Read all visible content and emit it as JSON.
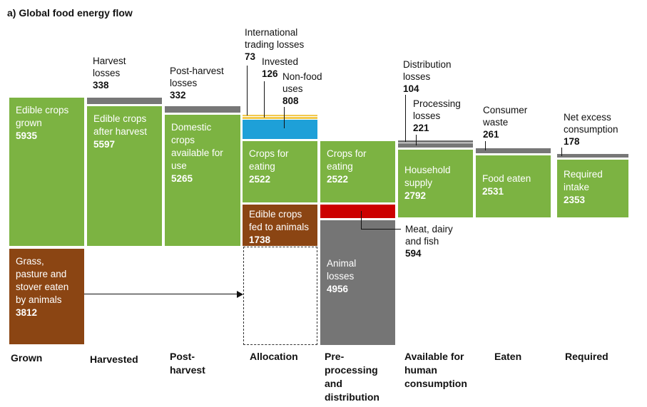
{
  "title": "a) Global food energy flow",
  "stages": [
    "Grown",
    "Harvested",
    "Post-\nharvest",
    "Allocation",
    "Pre-\nprocessing\nand\ndistribution",
    "Available for\nhuman\nconsumption",
    "Eaten",
    "Required"
  ],
  "blocks": {
    "edible_grown": {
      "label": "Edible crops\ngrown",
      "value": "5935"
    },
    "grass": {
      "label": "Grass,\npasture and\nstover eaten\nby animals",
      "value": "3812"
    },
    "after_harvest": {
      "label": "Edible crops\nafter harvest",
      "value": "5597"
    },
    "domestic": {
      "label": "Domestic\ncrops\navailable for\nuse",
      "value": "5265"
    },
    "alloc_eating": {
      "label": "Crops for\neating",
      "value": "2522"
    },
    "fed_animals": {
      "label": "Edible crops\nfed to animals",
      "value": "1738"
    },
    "pre_eating": {
      "label": "Crops for\neating",
      "value": "2522"
    },
    "animal_losses": {
      "label": "Animal\nlosses",
      "value": "4956"
    },
    "household": {
      "label": "Household\nsupply",
      "value": "2792"
    },
    "food_eaten": {
      "label": "Food eaten",
      "value": "2531"
    },
    "required": {
      "label": "Required\nintake",
      "value": "2353"
    }
  },
  "callouts": {
    "harvest_losses": {
      "label": "Harvest\nlosses",
      "value": "338"
    },
    "post_harvest": {
      "label": "Post-harvest\nlosses",
      "value": "332"
    },
    "intl_trading": {
      "label": "International\ntrading losses",
      "value": "73"
    },
    "invested": {
      "label": "Invested",
      "value": "126"
    },
    "non_food": {
      "label": "Non-food\nuses",
      "value": "808"
    },
    "distribution": {
      "label": "Distribution\nlosses",
      "value": "104"
    },
    "processing": {
      "label": "Processing\nlosses",
      "value": "221"
    },
    "consumer_waste": {
      "label": "Consumer\nwaste",
      "value": "261"
    },
    "net_excess": {
      "label": "Net excess\nconsumption",
      "value": "178"
    },
    "meat_dairy": {
      "label": "Meat, dairy\nand fish",
      "value": "594"
    }
  },
  "colors": {
    "edible": "#7cb342",
    "animal_feed": "#8b4513",
    "losses": "#757575",
    "non_food": "#1ea0d8",
    "meat": "#cc0000",
    "invested": "#f2c94c"
  }
}
